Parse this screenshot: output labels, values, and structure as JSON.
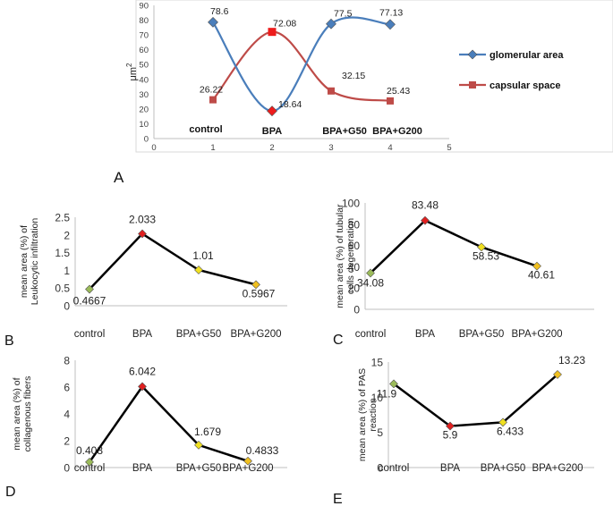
{
  "chart_data": [
    {
      "id": "A",
      "type": "line",
      "panel_label": "A",
      "ylabel": "μm",
      "ylabel_exp": "2",
      "ylim": [
        0,
        90
      ],
      "yticks": [
        0,
        10,
        20,
        30,
        40,
        50,
        60,
        70,
        80,
        90
      ],
      "xlim": [
        0,
        5
      ],
      "xticks": [
        0,
        1,
        2,
        3,
        4,
        5
      ],
      "x": [
        1,
        2,
        3,
        4
      ],
      "category_labels": [
        "control",
        "BPA",
        "BPA+G50",
        "BPA+G200"
      ],
      "series": [
        {
          "name": "glomerular area",
          "values": [
            78.6,
            18.64,
            77.5,
            77.13
          ],
          "value_labels": [
            "78.6",
            "18.64",
            "77.5",
            "77.13"
          ],
          "color": "#4a7ebb"
        },
        {
          "name": "capsular space",
          "values": [
            26.22,
            72.08,
            32.15,
            25.43
          ],
          "value_labels": [
            "26.22",
            "72.08",
            "32.15",
            "25.43"
          ],
          "color": "#be4b48"
        }
      ],
      "legend": [
        "glomerular area",
        "capsular space"
      ]
    },
    {
      "id": "B",
      "type": "line",
      "panel_label": "B",
      "ylabel_lines": [
        "mean area (%) of",
        "Leukocytic infiltration"
      ],
      "ylim": [
        0,
        2.5
      ],
      "yticks": [
        0,
        0.5,
        1,
        1.5,
        2,
        2.5
      ],
      "ytick_labels": [
        "0",
        "0.5",
        "1",
        "1.5",
        "2",
        "2.5"
      ],
      "categories": [
        "control",
        "BPA",
        "BPA+G50",
        "BPA+G200"
      ],
      "values": [
        0.4667,
        2.033,
        1.01,
        0.5967
      ],
      "value_labels": [
        "0.4667",
        "2.033",
        "1.01",
        "0.5967"
      ],
      "marker_colors": [
        "#9bbb59",
        "#e02020",
        "#f0e020",
        "#f0c020"
      ]
    },
    {
      "id": "C",
      "type": "line",
      "panel_label": "C",
      "ylabel_lines": [
        "mean area (%) of tubular",
        "cells degeneration"
      ],
      "ylim": [
        0,
        100
      ],
      "yticks": [
        0,
        20,
        40,
        60,
        80,
        100
      ],
      "ytick_labels": [
        "0",
        "20",
        "40",
        "60",
        "80",
        "100"
      ],
      "categories": [
        "control",
        "BPA",
        "BPA+G50",
        "BPA+G200"
      ],
      "values": [
        34.08,
        83.48,
        58.53,
        40.61
      ],
      "value_labels": [
        "34.08",
        "83.48",
        "58.53",
        "40.61"
      ],
      "marker_colors": [
        "#9bbb59",
        "#e02020",
        "#f0e020",
        "#f0c020"
      ]
    },
    {
      "id": "D",
      "type": "line",
      "panel_label": "D",
      "ylabel_lines": [
        "mean area (%) of",
        "collagenous fibers"
      ],
      "ylim": [
        0,
        8
      ],
      "yticks": [
        0,
        2,
        4,
        6,
        8
      ],
      "ytick_labels": [
        "0",
        "2",
        "4",
        "6",
        "8"
      ],
      "categories": [
        "control",
        "BPA",
        "BPA+G50",
        "BPA+G200"
      ],
      "values": [
        0.408,
        6.042,
        1.679,
        0.4833
      ],
      "value_labels": [
        "0.408",
        "6.042",
        "1.679",
        "0.4833"
      ],
      "marker_colors": [
        "#9bbb59",
        "#e02020",
        "#f0e020",
        "#f0c020"
      ]
    },
    {
      "id": "E",
      "type": "line",
      "panel_label": "E",
      "ylabel_lines": [
        "mean area (%) of PAS",
        "reaction"
      ],
      "ylim": [
        0,
        15
      ],
      "yticks": [
        0,
        5,
        10,
        15
      ],
      "ytick_labels": [
        "0",
        "5",
        "10",
        "15"
      ],
      "categories": [
        "control",
        "BPA",
        "BPA+G50",
        "BPA+G200"
      ],
      "values": [
        11.9,
        5.9,
        6.433,
        13.23
      ],
      "value_labels": [
        "11.9",
        "5.9",
        "6.433",
        "13.23"
      ],
      "marker_colors": [
        "#9bbb59",
        "#e02020",
        "#f0e020",
        "#f0c020"
      ]
    }
  ]
}
